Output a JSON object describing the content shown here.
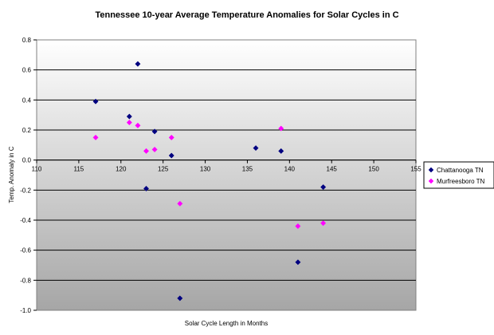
{
  "chart_data": {
    "type": "scatter",
    "title": "Tennessee 10-year Average Temperature Anomalies for Solar Cycles in C",
    "xlabel": "Solar Cycle Length in Months",
    "ylabel": "Temp. Anomaly in C",
    "xlim": [
      110,
      155
    ],
    "ylim": [
      -1.0,
      0.8
    ],
    "x_ticks": [
      "110",
      "115",
      "120",
      "125",
      "130",
      "135",
      "140",
      "145",
      "150",
      "155"
    ],
    "y_ticks": [
      "0.8",
      "0.6",
      "0.4",
      "0.2",
      "0.0",
      "-0.2",
      "-0.4",
      "-0.6",
      "-0.8",
      "-1.0"
    ],
    "x_tick_values": [
      110,
      115,
      120,
      125,
      130,
      135,
      140,
      145,
      150,
      155
    ],
    "y_tick_values": [
      0.8,
      0.6,
      0.4,
      0.2,
      0.0,
      -0.2,
      -0.4,
      -0.6,
      -0.8,
      -1.0
    ],
    "grid": "horizontal",
    "legend_position": "right",
    "plot_background": "gray gradient",
    "series": [
      {
        "name": "Chattanooga TN",
        "color": "#000080",
        "marker": "diamond",
        "points": [
          {
            "x": 117,
            "y": 0.39
          },
          {
            "x": 121,
            "y": 0.29
          },
          {
            "x": 122,
            "y": 0.64
          },
          {
            "x": 123,
            "y": -0.19
          },
          {
            "x": 124,
            "y": 0.19
          },
          {
            "x": 126,
            "y": 0.03
          },
          {
            "x": 127,
            "y": -0.92
          },
          {
            "x": 136,
            "y": 0.08
          },
          {
            "x": 139,
            "y": 0.06
          },
          {
            "x": 141,
            "y": -0.68
          },
          {
            "x": 144,
            "y": -0.18
          }
        ]
      },
      {
        "name": "Murfreesboro TN",
        "color": "#FF00FF",
        "marker": "diamond",
        "points": [
          {
            "x": 117,
            "y": 0.15
          },
          {
            "x": 121,
            "y": 0.25
          },
          {
            "x": 122,
            "y": 0.23
          },
          {
            "x": 123,
            "y": 0.06
          },
          {
            "x": 124,
            "y": 0.07
          },
          {
            "x": 126,
            "y": 0.15
          },
          {
            "x": 127,
            "y": -0.29
          },
          {
            "x": 139,
            "y": 0.21
          },
          {
            "x": 141,
            "y": -0.44
          },
          {
            "x": 144,
            "y": -0.42
          }
        ]
      }
    ]
  }
}
